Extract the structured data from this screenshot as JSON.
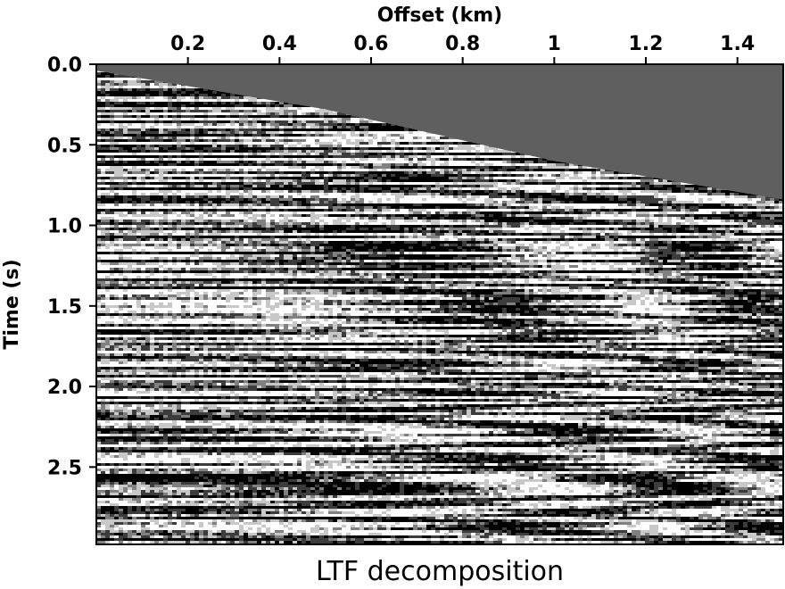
{
  "chart_data": {
    "type": "heatmap",
    "title": "",
    "caption": "LTF decomposition",
    "xlabel": "Offset (km)",
    "ylabel": "Time (s)",
    "xlim": [
      0.0,
      1.5
    ],
    "ylim": [
      0.0,
      2.98
    ],
    "x_axis_position": "top",
    "y_axis_inverted": true,
    "xticks": [
      0.2,
      0.4,
      0.6,
      0.8,
      1,
      1.2,
      1.4
    ],
    "xtick_labels": [
      "0.2",
      "0.4",
      "0.6",
      "0.8",
      "1",
      "1.2",
      "1.4"
    ],
    "yticks": [
      0.0,
      0.5,
      1.0,
      1.5,
      2.0,
      2.5
    ],
    "ytick_labels": [
      "0.0",
      "0.5",
      "1.0",
      "1.5",
      "2.0",
      "2.5"
    ],
    "colormap": "grayscale",
    "muted_region_color": "#5f5f5f",
    "mute_line": {
      "description": "top mute boundary (first arrival)",
      "points": [
        [
          0.0,
          0.04
        ],
        [
          0.5,
          0.28
        ],
        [
          1.0,
          0.6
        ],
        [
          1.5,
          0.84
        ]
      ]
    },
    "grid": false
  }
}
